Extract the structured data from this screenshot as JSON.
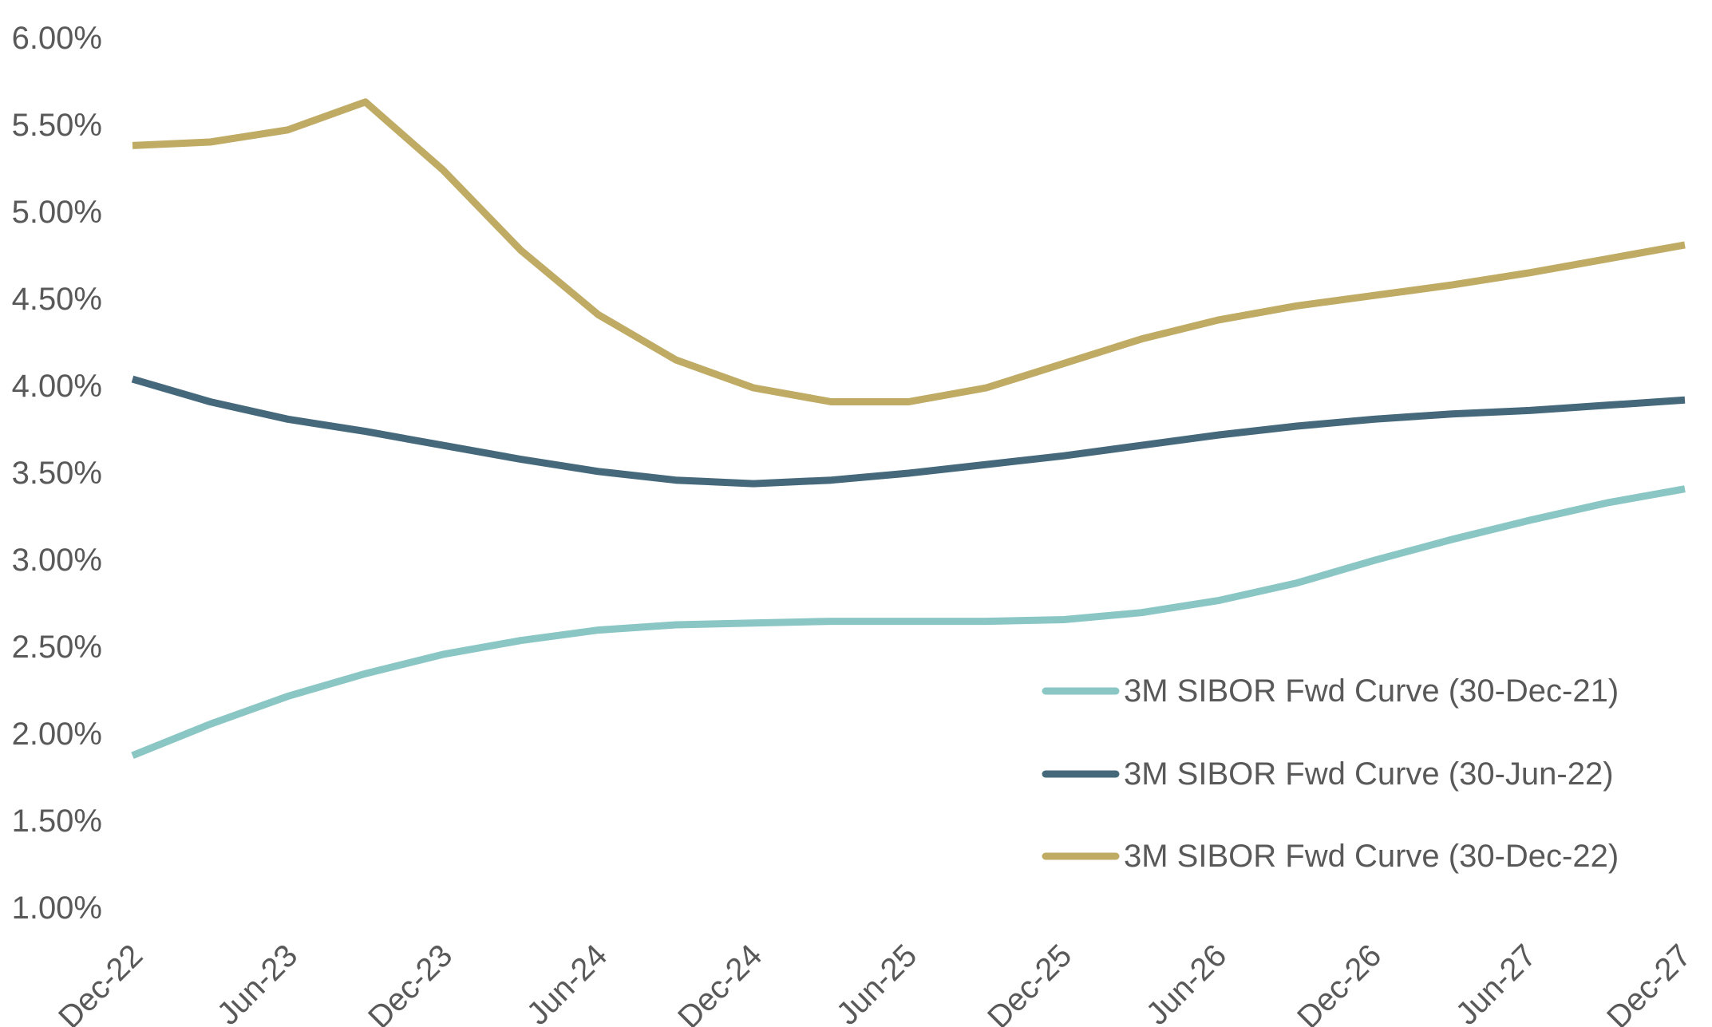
{
  "chart_data": {
    "type": "line",
    "title": "",
    "xlabel": "",
    "ylabel": "",
    "ylim": [
      0.01,
      0.06
    ],
    "y_ticks": [
      "6.00%",
      "5.50%",
      "5.00%",
      "4.50%",
      "4.00%",
      "3.50%",
      "3.00%",
      "2.50%",
      "2.00%",
      "1.50%",
      "1.00%"
    ],
    "y_tick_values": [
      0.06,
      0.055,
      0.05,
      0.045,
      0.04,
      0.035,
      0.03,
      0.025,
      0.02,
      0.015,
      0.01
    ],
    "x_ticks": [
      "Dec-22",
      "Jun-23",
      "Dec-23",
      "Jun-24",
      "Dec-24",
      "Jun-25",
      "Dec-25",
      "Jun-26",
      "Dec-26",
      "Jun-27",
      "Dec-27"
    ],
    "grid": false,
    "legend_position": "bottom-right",
    "x": [
      "Dec-22",
      "Mar-23",
      "Jun-23",
      "Sep-23",
      "Dec-23",
      "Mar-24",
      "Jun-24",
      "Sep-24",
      "Dec-24",
      "Mar-25",
      "Jun-25",
      "Sep-25",
      "Dec-25",
      "Mar-26",
      "Jun-26",
      "Sep-26",
      "Dec-26",
      "Mar-27",
      "Jun-27",
      "Sep-27",
      "Dec-27"
    ],
    "series": [
      {
        "name": "3M SIBOR Fwd Curve (30-Dec-21)",
        "color": "#8ac6c4",
        "values": [
          0.0188,
          0.0206,
          0.0222,
          0.0235,
          0.0246,
          0.0254,
          0.026,
          0.0263,
          0.0264,
          0.0265,
          0.0265,
          0.0265,
          0.0266,
          0.027,
          0.0277,
          0.0287,
          0.03,
          0.0312,
          0.0323,
          0.0333,
          0.0341
        ]
      },
      {
        "name": "3M SIBOR Fwd Curve (30-Jun-22)",
        "color": "#45697b",
        "values": [
          0.0404,
          0.0391,
          0.0381,
          0.0374,
          0.0366,
          0.0358,
          0.0351,
          0.0346,
          0.0344,
          0.0346,
          0.035,
          0.0355,
          0.036,
          0.0366,
          0.0372,
          0.0377,
          0.0381,
          0.0384,
          0.0386,
          0.0389,
          0.0392
        ]
      },
      {
        "name": "3M SIBOR Fwd Curve (30-Dec-22)",
        "color": "#bfab64",
        "values": [
          0.0538,
          0.054,
          0.0547,
          0.0563,
          0.0524,
          0.0478,
          0.0441,
          0.0415,
          0.0399,
          0.0391,
          0.0391,
          0.0399,
          0.0413,
          0.0427,
          0.0438,
          0.0446,
          0.0452,
          0.0458,
          0.0465,
          0.0473,
          0.0481
        ]
      }
    ]
  }
}
